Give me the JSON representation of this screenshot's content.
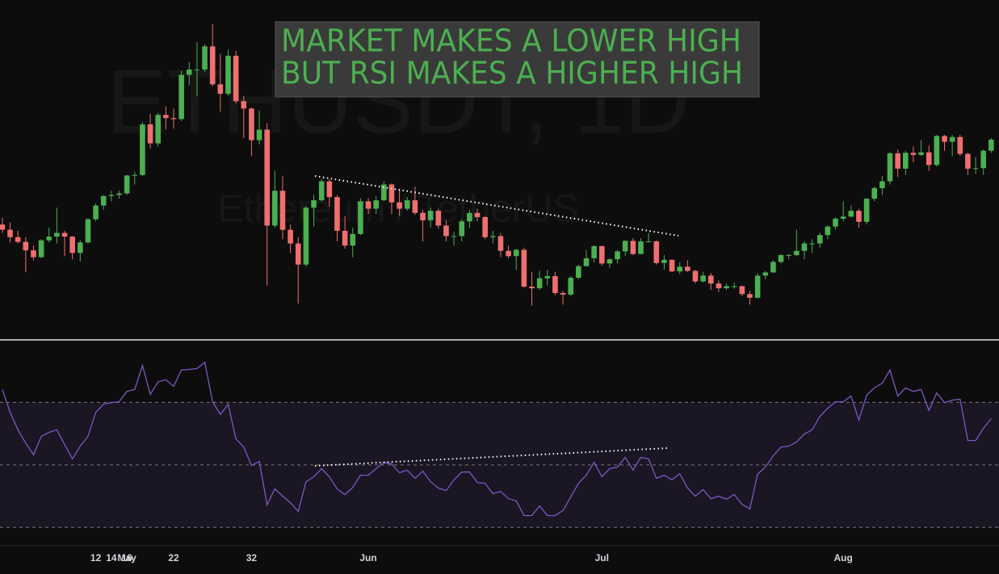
{
  "chart_data": [
    {
      "type": "candlestick",
      "watermark": {
        "symbol": "ETHUSDT, 1D",
        "name": "Ethereum / TetherUS"
      },
      "annotation": [
        "MARKET MAKES A LOWER HIGH",
        "BUT RSI MAKES A HIGHER HIGH"
      ],
      "up_color": "#4caf50",
      "down_color": "#ef6f6f",
      "xlim": [
        -0.3,
        128
      ],
      "ylim": [
        1393,
        4610
      ],
      "candles": [
        [
          2480,
          2545,
          2400,
          2430
        ],
        [
          2430,
          2500,
          2310,
          2360
        ],
        [
          2360,
          2420,
          2300,
          2315
        ],
        [
          2315,
          2360,
          2030,
          2235
        ],
        [
          2235,
          2280,
          2140,
          2170
        ],
        [
          2170,
          2340,
          2160,
          2330
        ],
        [
          2330,
          2450,
          2310,
          2365
        ],
        [
          2365,
          2640,
          2300,
          2400
        ],
        [
          2400,
          2420,
          2180,
          2365
        ],
        [
          2365,
          2370,
          2150,
          2210
        ],
        [
          2210,
          2330,
          2130,
          2310
        ],
        [
          2310,
          2540,
          2300,
          2530
        ],
        [
          2530,
          2680,
          2510,
          2660
        ],
        [
          2660,
          2760,
          2620,
          2750
        ],
        [
          2750,
          2800,
          2700,
          2760
        ],
        [
          2760,
          2800,
          2725,
          2775
        ],
        [
          2775,
          2950,
          2760,
          2945
        ],
        [
          2945,
          2980,
          2860,
          2950
        ],
        [
          2950,
          3450,
          2940,
          3430
        ],
        [
          3430,
          3530,
          3200,
          3250
        ],
        [
          3250,
          3540,
          3220,
          3520
        ],
        [
          3520,
          3600,
          3380,
          3490
        ],
        [
          3490,
          3580,
          3390,
          3480
        ],
        [
          3480,
          3940,
          3460,
          3900
        ],
        [
          3900,
          4020,
          3800,
          3950
        ],
        [
          3950,
          4210,
          3700,
          3950
        ],
        [
          3950,
          4190,
          3930,
          4170
        ],
        [
          4170,
          4380,
          3790,
          3810
        ],
        [
          3810,
          4100,
          3550,
          3720
        ],
        [
          3720,
          4140,
          3700,
          4080
        ],
        [
          4080,
          4130,
          3630,
          3650
        ],
        [
          3650,
          3700,
          3300,
          3580
        ],
        [
          3580,
          3590,
          3130,
          3280
        ],
        [
          3280,
          3560,
          3240,
          3380
        ],
        [
          3380,
          3440,
          1900,
          2470
        ],
        [
          2470,
          2990,
          2450,
          2800
        ],
        [
          2800,
          2940,
          2340,
          2430
        ],
        [
          2430,
          2480,
          2210,
          2300
        ],
        [
          2300,
          2360,
          1730,
          2100
        ],
        [
          2100,
          2660,
          2080,
          2640
        ],
        [
          2640,
          2760,
          2460,
          2710
        ],
        [
          2710,
          2910,
          2700,
          2890
        ],
        [
          2890,
          2910,
          2650,
          2740
        ],
        [
          2740,
          2760,
          2320,
          2420
        ],
        [
          2420,
          2560,
          2250,
          2280
        ],
        [
          2280,
          2450,
          2170,
          2390
        ],
        [
          2390,
          2730,
          2380,
          2700
        ],
        [
          2700,
          2730,
          2580,
          2630
        ],
        [
          2630,
          2750,
          2580,
          2710
        ],
        [
          2710,
          2890,
          2700,
          2860
        ],
        [
          2860,
          2870,
          2580,
          2690
        ],
        [
          2690,
          2820,
          2560,
          2630
        ],
        [
          2630,
          2740,
          2610,
          2710
        ],
        [
          2710,
          2840,
          2570,
          2590
        ],
        [
          2590,
          2620,
          2320,
          2520
        ],
        [
          2520,
          2640,
          2450,
          2610
        ],
        [
          2610,
          2630,
          2440,
          2470
        ],
        [
          2470,
          2520,
          2320,
          2370
        ],
        [
          2370,
          2410,
          2280,
          2370
        ],
        [
          2370,
          2530,
          2320,
          2510
        ],
        [
          2510,
          2620,
          2450,
          2590
        ],
        [
          2590,
          2630,
          2510,
          2550
        ],
        [
          2550,
          2560,
          2340,
          2360
        ],
        [
          2360,
          2420,
          2300,
          2370
        ],
        [
          2370,
          2400,
          2170,
          2230
        ],
        [
          2230,
          2280,
          2160,
          2180
        ],
        [
          2180,
          2250,
          2050,
          2240
        ],
        [
          2240,
          2260,
          1880,
          1890
        ],
        [
          1890,
          2030,
          1710,
          1875
        ],
        [
          1875,
          2040,
          1860,
          1970
        ],
        [
          1970,
          2050,
          1900,
          1990
        ],
        [
          1990,
          2030,
          1810,
          1830
        ],
        [
          1830,
          1850,
          1720,
          1815
        ],
        [
          1815,
          1990,
          1800,
          1975
        ],
        [
          1975,
          2100,
          1960,
          2085
        ],
        [
          2085,
          2240,
          2080,
          2160
        ],
        [
          2160,
          2280,
          2120,
          2275
        ],
        [
          2275,
          2280,
          2090,
          2110
        ],
        [
          2110,
          2160,
          2070,
          2150
        ],
        [
          2150,
          2240,
          2110,
          2225
        ],
        [
          2225,
          2330,
          2180,
          2325
        ],
        [
          2325,
          2350,
          2190,
          2200
        ],
        [
          2200,
          2350,
          2200,
          2320
        ],
        [
          2320,
          2400,
          2310,
          2320
        ],
        [
          2320,
          2330,
          2100,
          2115
        ],
        [
          2115,
          2190,
          2050,
          2145
        ],
        [
          2145,
          2150,
          2030,
          2035
        ],
        [
          2035,
          2120,
          2010,
          2080
        ],
        [
          2080,
          2140,
          2030,
          2040
        ],
        [
          2040,
          2050,
          1920,
          1940
        ],
        [
          1940,
          2030,
          1930,
          1995
        ],
        [
          1995,
          2020,
          1860,
          1920
        ],
        [
          1920,
          1950,
          1840,
          1875
        ],
        [
          1875,
          1920,
          1860,
          1895
        ],
        [
          1895,
          1930,
          1870,
          1895
        ],
        [
          1895,
          1900,
          1800,
          1820
        ],
        [
          1820,
          1850,
          1720,
          1785
        ],
        [
          1785,
          2020,
          1780,
          1995
        ],
        [
          1995,
          2040,
          1960,
          2025
        ],
        [
          2025,
          2140,
          2020,
          2125
        ],
        [
          2125,
          2200,
          2110,
          2190
        ],
        [
          2190,
          2200,
          2150,
          2190
        ],
        [
          2190,
          2430,
          2180,
          2230
        ],
        [
          2230,
          2320,
          2150,
          2300
        ],
        [
          2300,
          2340,
          2210,
          2300
        ],
        [
          2300,
          2400,
          2260,
          2380
        ],
        [
          2380,
          2470,
          2340,
          2460
        ],
        [
          2460,
          2550,
          2430,
          2535
        ],
        [
          2535,
          2700,
          2510,
          2555
        ],
        [
          2555,
          2660,
          2550,
          2610
        ],
        [
          2610,
          2630,
          2450,
          2505
        ],
        [
          2505,
          2730,
          2480,
          2725
        ],
        [
          2725,
          2840,
          2700,
          2825
        ],
        [
          2825,
          2940,
          2760,
          2890
        ],
        [
          2890,
          3170,
          2860,
          3155
        ],
        [
          3155,
          3190,
          2930,
          3010
        ],
        [
          3010,
          3180,
          2950,
          3160
        ],
        [
          3160,
          3220,
          3070,
          3140
        ],
        [
          3140,
          3280,
          3130,
          3165
        ],
        [
          3165,
          3230,
          2990,
          3045
        ],
        [
          3045,
          3330,
          3030,
          3320
        ],
        [
          3320,
          3330,
          3180,
          3265
        ],
        [
          3265,
          3330,
          3130,
          3310
        ],
        [
          3310,
          3330,
          3130,
          3150
        ],
        [
          3150,
          3160,
          2950,
          3010
        ],
        [
          3010,
          3120,
          2960,
          3015
        ],
        [
          3015,
          3190,
          2950,
          3180
        ],
        [
          3180,
          3300,
          3160,
          3285
        ]
      ]
    },
    {
      "type": "line",
      "color": "#7e57c2",
      "band_color": "rgba(126,87,194,0.12)",
      "xlim": [
        -0.3,
        128
      ],
      "ylim": [
        24.4,
        89.7
      ],
      "yticks": [
        30,
        50,
        70
      ],
      "grid": true,
      "xticks": [
        {
          "value": 16,
          "label": "May"
        },
        32,
        {
          "value": 47,
          "label": "Jun"
        },
        14,
        {
          "value": 77,
          "label": "Jul"
        },
        12,
        22,
        {
          "value": 108,
          "label": "Aug"
        },
        16
      ],
      "values": [
        74.1,
        66.8,
        61.2,
        57,
        53.2,
        59.1,
        60.4,
        61.2,
        56.5,
        51.9,
        56,
        59.1,
        66.8,
        69.4,
        69.9,
        70.2,
        73.5,
        74.1,
        81.8,
        72.5,
        76.6,
        77.2,
        75.1,
        80.3,
        80.5,
        80.8,
        82.8,
        70.2,
        66.1,
        69.4,
        58.3,
        55.7,
        49.8,
        51.1,
        37.2,
        42.3,
        40,
        37.9,
        35.1,
        44.6,
        46.2,
        48.8,
        46.2,
        42.3,
        40.5,
        42.8,
        46.7,
        46.7,
        48.8,
        50.8,
        50.3,
        47.5,
        48.3,
        45.7,
        48,
        44.6,
        42.6,
        41.8,
        45.2,
        47.7,
        47.7,
        44.4,
        44.1,
        40.8,
        41.5,
        39.2,
        38.5,
        33.8,
        33.8,
        36.9,
        33.8,
        33.8,
        35.4,
        39.7,
        44.1,
        46.7,
        50.8,
        46.2,
        48.8,
        49.3,
        52.4,
        48.3,
        52.4,
        51.9,
        45.7,
        46.7,
        45.2,
        47.2,
        42.6,
        40,
        42.1,
        39.2,
        40,
        39,
        40.5,
        37.4,
        35.9,
        47,
        49.3,
        52.9,
        55.7,
        56,
        57.3,
        59.9,
        61.2,
        65.5,
        68.1,
        70.2,
        70.2,
        72,
        64.3,
        72.3,
        74.6,
        76.1,
        80.3,
        72,
        74.6,
        73.5,
        74.1,
        67.4,
        73,
        69.9,
        70.7,
        71,
        57.8,
        57.8,
        61.7,
        64.8
      ]
    }
  ]
}
